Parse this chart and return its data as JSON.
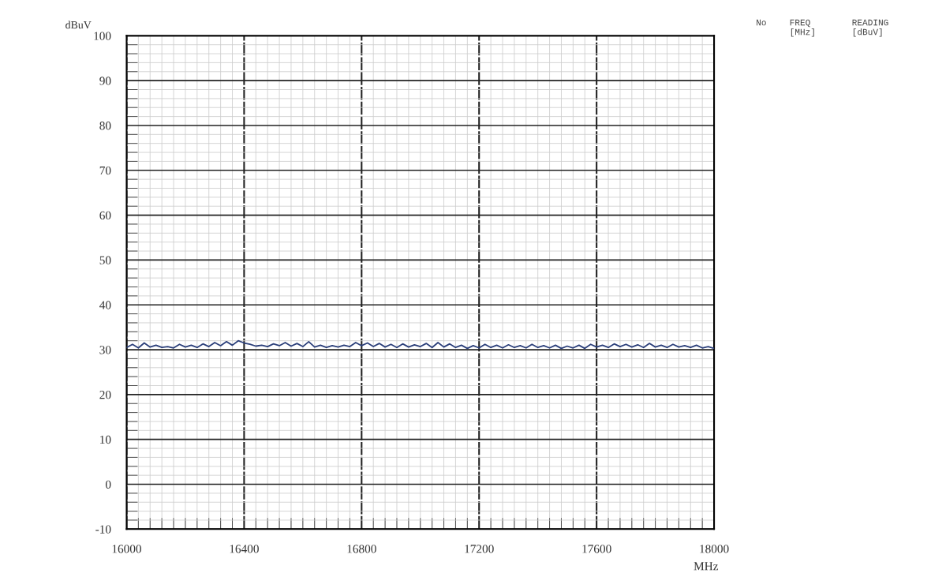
{
  "chart_data": {
    "type": "line",
    "xlabel": "MHz",
    "ylabel": "dBuV",
    "annotations": [
      "No",
      "FREQ\n[MHz]",
      "READING\n[dBuV]"
    ],
    "x": [
      16000,
      16020,
      16040,
      16060,
      16080,
      16100,
      16120,
      16140,
      16160,
      16180,
      16200,
      16220,
      16240,
      16260,
      16280,
      16300,
      16320,
      16340,
      16360,
      16380,
      16400,
      16420,
      16440,
      16460,
      16480,
      16500,
      16520,
      16540,
      16560,
      16580,
      16600,
      16620,
      16640,
      16660,
      16680,
      16700,
      16720,
      16740,
      16760,
      16780,
      16800,
      16820,
      16840,
      16860,
      16880,
      16900,
      16920,
      16940,
      16960,
      16980,
      17000,
      17020,
      17040,
      17060,
      17080,
      17100,
      17120,
      17140,
      17160,
      17180,
      17200,
      17220,
      17240,
      17260,
      17280,
      17300,
      17320,
      17340,
      17360,
      17380,
      17400,
      17420,
      17440,
      17460,
      17480,
      17500,
      17520,
      17540,
      17560,
      17580,
      17600,
      17620,
      17640,
      17660,
      17680,
      17700,
      17720,
      17740,
      17760,
      17780,
      17800,
      17820,
      17840,
      17860,
      17880,
      17900,
      17920,
      17940,
      17960,
      17980,
      18000
    ],
    "series": [
      {
        "color": "#2b3f7a",
        "values": [
          30.5,
          31.2,
          30.4,
          31.5,
          30.6,
          31.0,
          30.5,
          30.7,
          30.4,
          31.2,
          30.6,
          31.0,
          30.5,
          31.3,
          30.7,
          31.6,
          30.9,
          31.8,
          31.0,
          32.0,
          31.5,
          31.2,
          30.8,
          31.0,
          30.7,
          31.3,
          30.9,
          31.6,
          30.8,
          31.4,
          30.7,
          31.8,
          30.6,
          31.0,
          30.5,
          30.9,
          30.6,
          31.0,
          30.7,
          31.6,
          30.9,
          31.5,
          30.7,
          31.4,
          30.6,
          31.2,
          30.5,
          31.3,
          30.6,
          31.1,
          30.7,
          31.4,
          30.5,
          31.6,
          30.6,
          31.3,
          30.5,
          31.0,
          30.3,
          30.9,
          30.4,
          31.2,
          30.5,
          31.0,
          30.4,
          31.1,
          30.5,
          30.9,
          30.4,
          31.2,
          30.5,
          30.9,
          30.4,
          31.0,
          30.3,
          30.8,
          30.4,
          31.0,
          30.3,
          31.2,
          30.6,
          31.0,
          30.5,
          31.3,
          30.7,
          31.2,
          30.6,
          31.1,
          30.5,
          31.4,
          30.6,
          31.0,
          30.5,
          31.2,
          30.6,
          30.9,
          30.5,
          31.0,
          30.4,
          30.7,
          30.3
        ]
      }
    ],
    "xlim": [
      16000,
      18000
    ],
    "xticks": [
      16000,
      16400,
      16800,
      17200,
      17600,
      18000
    ],
    "ylim": [
      -10,
      100
    ],
    "yticks": [
      -10,
      0,
      10,
      20,
      30,
      40,
      50,
      60,
      70,
      80,
      90,
      100
    ],
    "grid": true,
    "legend": false,
    "marker": "none",
    "line_style": "solid"
  }
}
